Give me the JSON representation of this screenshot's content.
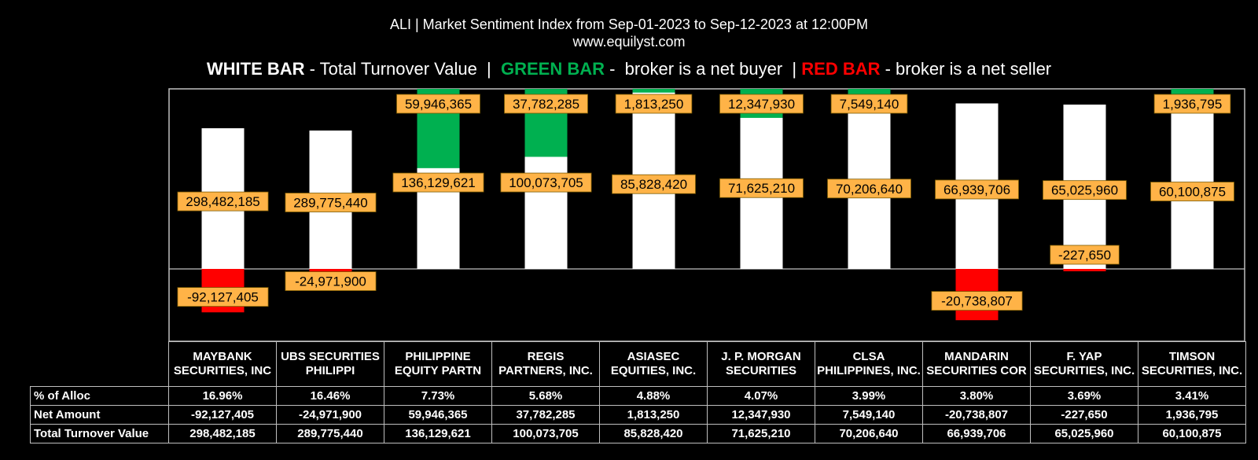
{
  "header": {
    "title": "ALI | Market Sentiment Index from Sep-01-2023 to Sep-12-2023 at 12:00PM",
    "subtitle": "www.equilyst.com",
    "legend": {
      "white_label": "WHITE BAR",
      "white_desc": " - Total Turnover Value  |  ",
      "green_label": "GREEN BAR",
      "green_desc": " -  broker is a net buyer  | ",
      "red_label": "RED BAR",
      "red_desc": " - broker is a net seller"
    }
  },
  "colors": {
    "background": "#000000",
    "turnover_bar": "#ffffff",
    "net_buyer": "#00b050",
    "net_seller": "#ff0000",
    "label_box": "#ffb347",
    "legend_green": "#00b050",
    "legend_red": "#ff0000"
  },
  "table": {
    "row_labels": [
      "% of Alloc",
      "Net Amount",
      "Total Turnover Value"
    ]
  },
  "chart_data": {
    "type": "bar",
    "categories": [
      "MAYBANK SECURITIES, INC",
      "UBS SECURITIES PHILIPPI",
      "PHILIPPINE EQUITY PARTN",
      "REGIS PARTNERS, INC.",
      "ASIASEC EQUITIES, INC.",
      "J. P. MORGAN SECURITIES",
      "CLSA PHILIPPINES, INC.",
      "MANDARIN SECURITIES COR",
      "F. YAP SECURITIES, INC.",
      "TIMSON SECURITIES, INC."
    ],
    "series": [
      {
        "name": "Total Turnover Value",
        "values": [
          298482185,
          289775440,
          136129621,
          100073705,
          85828420,
          71625210,
          70206640,
          66939706,
          65025960,
          60100875
        ],
        "labels": [
          "298,482,185",
          "289,775,440",
          "136,129,621",
          "100,073,705",
          "85,828,420",
          "71,625,210",
          "70,206,640",
          "66,939,706",
          "65,025,960",
          "60,100,875"
        ]
      },
      {
        "name": "Net Amount",
        "values": [
          -92127405,
          -24971900,
          59946365,
          37782285,
          1813250,
          12347930,
          7549140,
          -20738807,
          -227650,
          1936795
        ],
        "labels": [
          "-92,127,405",
          "-24,971,900",
          "59,946,365",
          "37,782,285",
          "1,813,250",
          "12,347,930",
          "7,549,140",
          "-20,738,807",
          "-227,650",
          "1,936,795"
        ]
      }
    ],
    "pct_alloc": [
      "16.96%",
      "16.46%",
      "7.73%",
      "5.68%",
      "4.88%",
      "4.07%",
      "3.99%",
      "3.80%",
      "3.69%",
      "3.41%"
    ],
    "note_scale": "Each broker is scaled to its own column; zero baseline shared."
  }
}
